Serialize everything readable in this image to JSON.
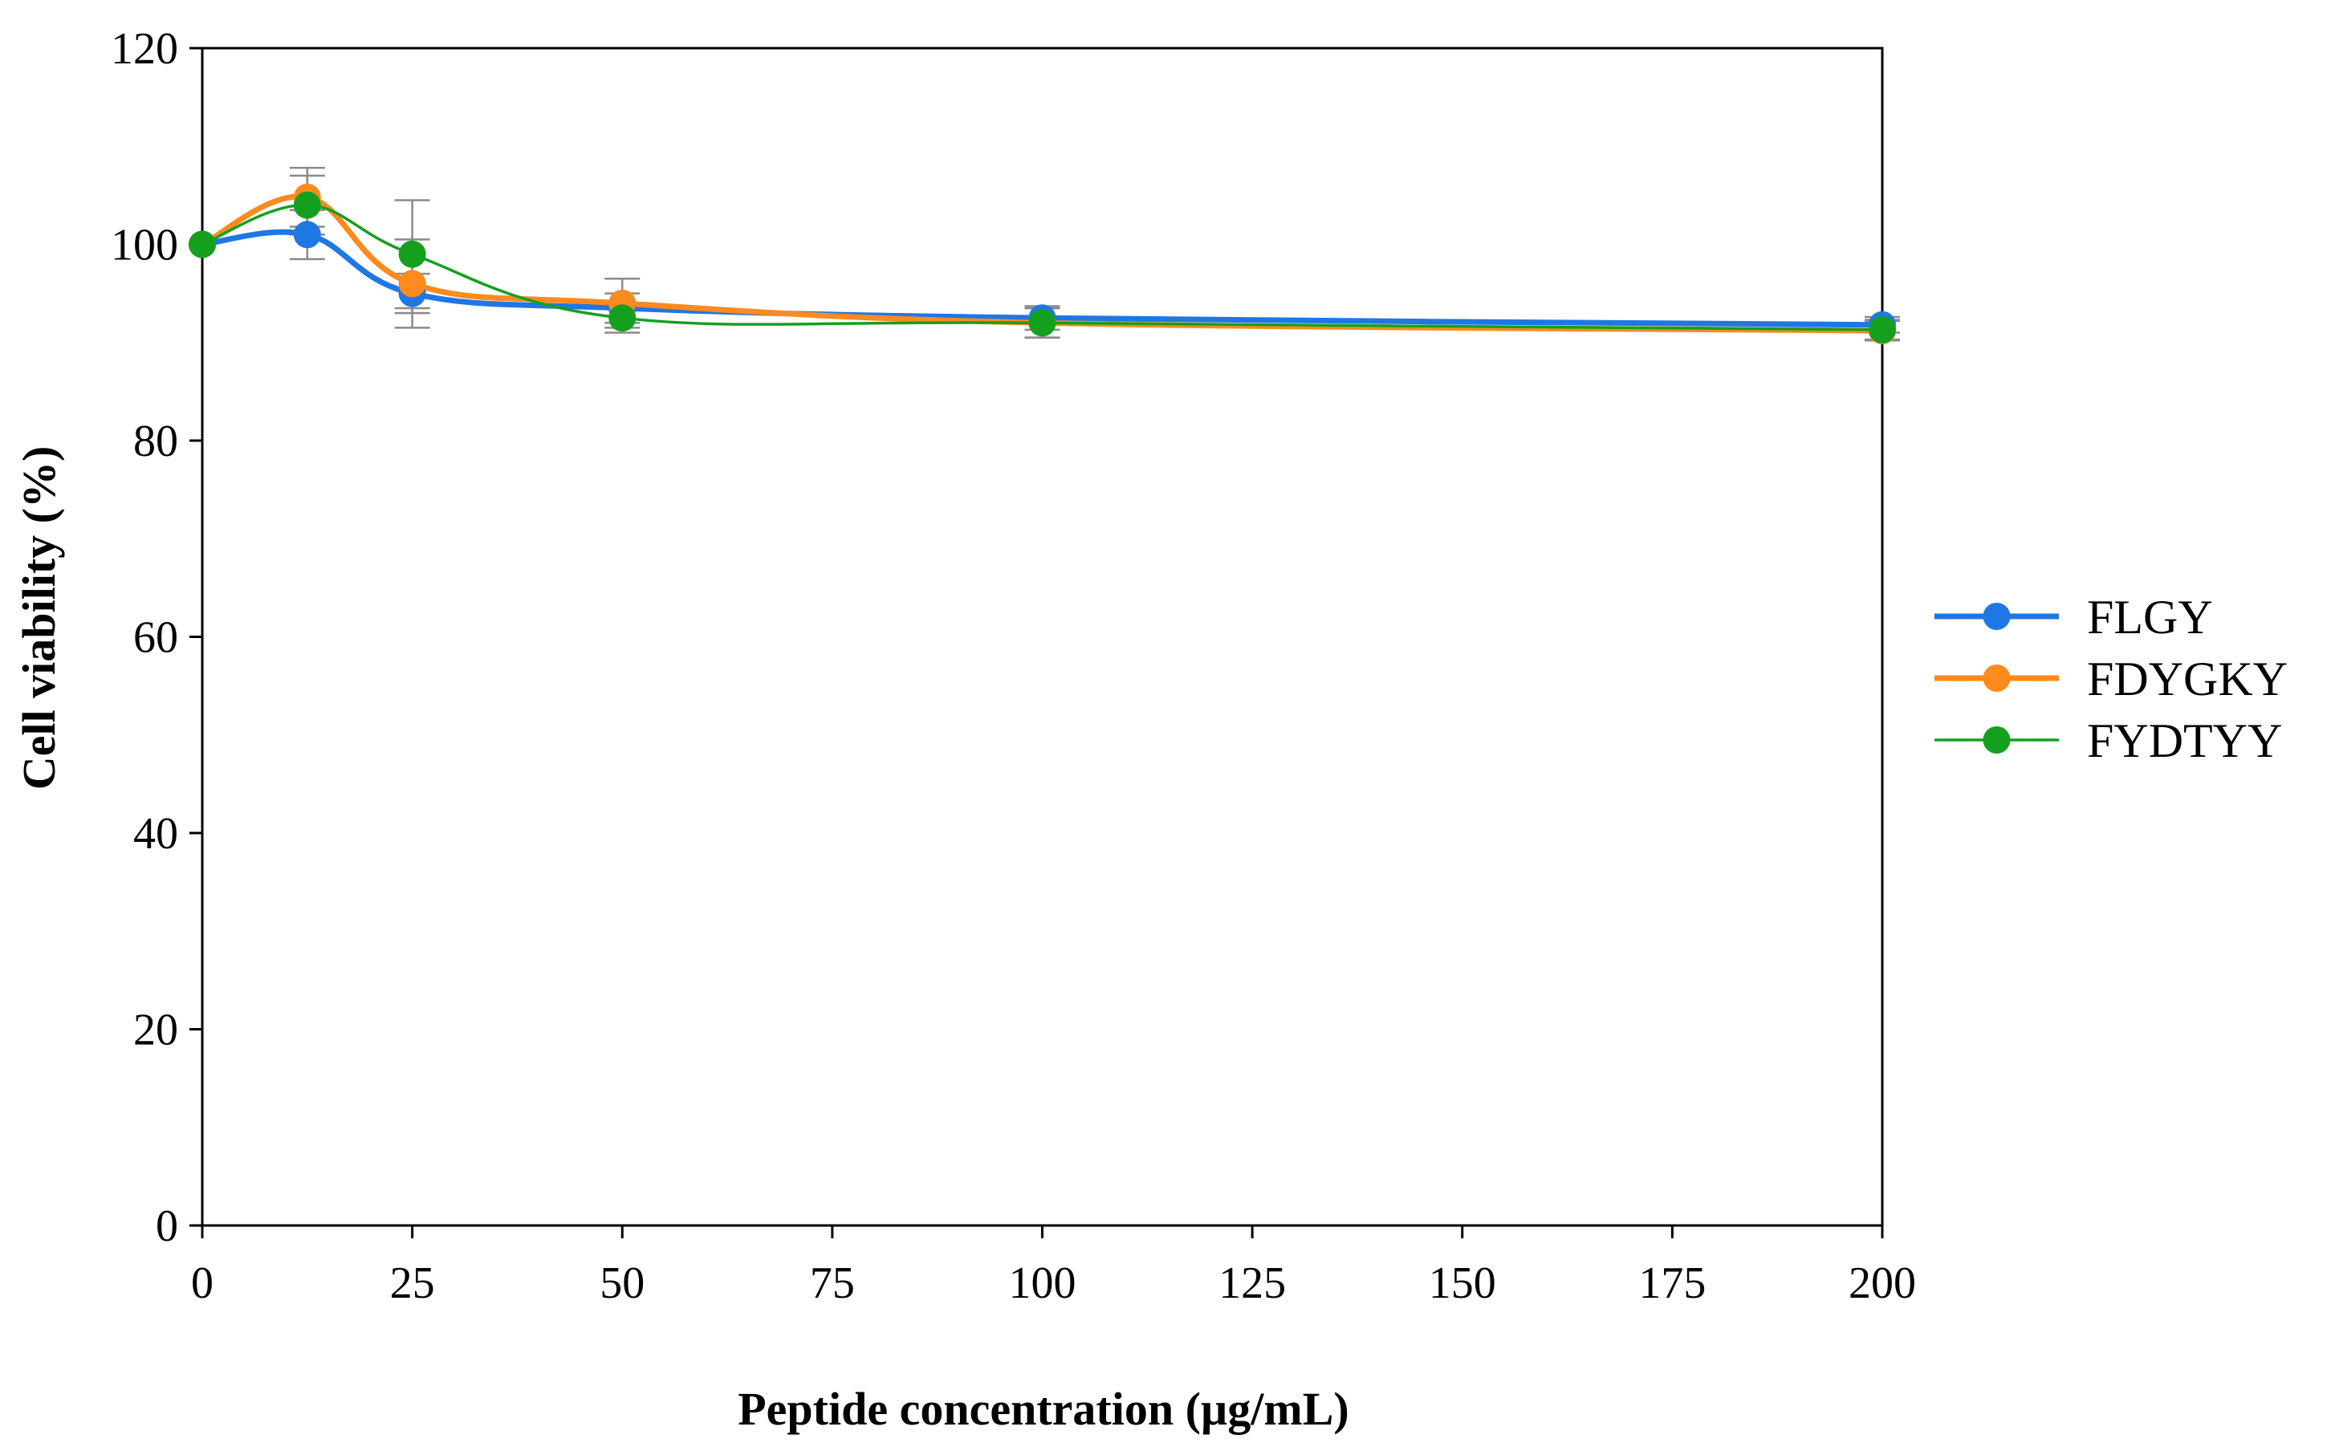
{
  "chart_data": {
    "type": "line",
    "title": "",
    "xlabel": "Peptide concentration (µg/mL)",
    "ylabel": "Cell viability (%)",
    "xlim": [
      0,
      200
    ],
    "ylim": [
      0,
      120
    ],
    "x_ticks": [
      0,
      25,
      50,
      75,
      100,
      125,
      150,
      175,
      200
    ],
    "y_ticks": [
      0,
      20,
      40,
      60,
      80,
      100,
      120
    ],
    "grid": false,
    "legend_position": "right",
    "series": [
      {
        "name": "FLGY",
        "color": "#1f77e4",
        "x": [
          0,
          12.5,
          25,
          50,
          100,
          200
        ],
        "y": [
          100,
          101,
          95,
          93.5,
          92.5,
          91.8
        ],
        "err": [
          0,
          2.5,
          2,
          1.5,
          1.2,
          0.8
        ]
      },
      {
        "name": "FDYGKY",
        "color": "#ff8a1e",
        "x": [
          0,
          12.5,
          25,
          50,
          100,
          200
        ],
        "y": [
          100,
          104.8,
          96,
          94,
          92,
          91.2
        ],
        "err": [
          0,
          3,
          4.5,
          2.5,
          1.5,
          1
        ]
      },
      {
        "name": "FYDTYY",
        "color": "#14a01e",
        "x": [
          0,
          12.5,
          25,
          50,
          100,
          200
        ],
        "y": [
          100,
          104,
          99,
          92.5,
          92,
          91.3
        ],
        "err": [
          0,
          3,
          5.5,
          1.5,
          1.5,
          1
        ]
      }
    ]
  }
}
